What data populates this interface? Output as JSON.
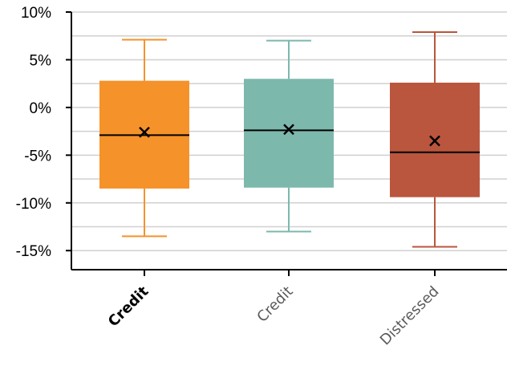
{
  "chart_data": {
    "type": "box",
    "categories": [
      "Credit",
      "Credit",
      "Distressed"
    ],
    "category_bold": [
      true,
      false,
      false
    ],
    "colors": [
      "#f5922a",
      "#7db8ad",
      "#b9563d"
    ],
    "y_tick_values": [
      10,
      5,
      0,
      -5,
      -10,
      -15
    ],
    "y_tick_labels": [
      "10%",
      "5%",
      "0%",
      "-5%",
      "-10%",
      "-15%"
    ],
    "ylim": [
      -17,
      10
    ],
    "grid": "horizontal",
    "boxes": [
      {
        "whisker_low": -13.5,
        "q1": -8.5,
        "median": -2.9,
        "q3": 2.8,
        "whisker_high": 7.1,
        "mean": -2.6
      },
      {
        "whisker_low": -13.0,
        "q1": -8.4,
        "median": -2.4,
        "q3": 3.0,
        "whisker_high": 7.0,
        "mean": -2.3
      },
      {
        "whisker_low": -14.6,
        "q1": -9.4,
        "median": -4.7,
        "q3": 2.6,
        "whisker_high": 7.9,
        "mean": -3.5
      }
    ]
  }
}
